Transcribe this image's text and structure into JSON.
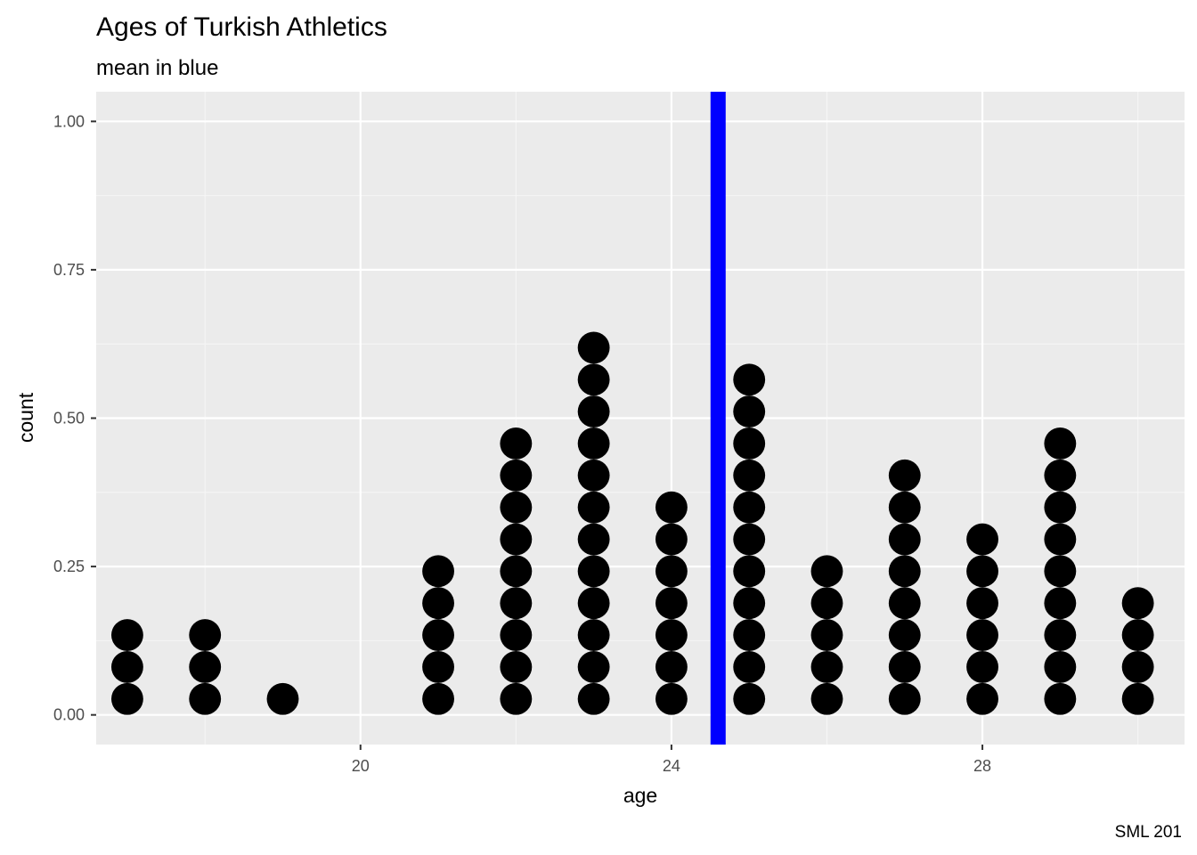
{
  "chart_data": {
    "type": "dotplot",
    "title": "Ages of Turkish Athletics",
    "subtitle": "mean in blue",
    "xlabel": "age",
    "ylabel": "count",
    "caption": "SML 201",
    "xlim": [
      16.6,
      30.6
    ],
    "ylim": [
      -0.05,
      1.05
    ],
    "x_ticks": [
      20,
      24,
      28
    ],
    "x_tick_labels": [
      "20",
      "24",
      "28"
    ],
    "y_ticks": [
      0,
      0.25,
      0.5,
      0.75,
      1
    ],
    "y_tick_labels": [
      "0.00",
      "0.25",
      "0.50",
      "0.75",
      "1.00"
    ],
    "x_minor_ticks": [
      18,
      22,
      26,
      30
    ],
    "y_minor_ticks": [
      0.125,
      0.375,
      0.625,
      0.875
    ],
    "grid": true,
    "dot_diameter_y": 0.0538,
    "points": [
      {
        "age": 17,
        "count": 3
      },
      {
        "age": 18,
        "count": 3
      },
      {
        "age": 19,
        "count": 1
      },
      {
        "age": 21,
        "count": 5
      },
      {
        "age": 22,
        "count": 9
      },
      {
        "age": 23,
        "count": 12
      },
      {
        "age": 24,
        "count": 7
      },
      {
        "age": 25,
        "count": 11
      },
      {
        "age": 26,
        "count": 5
      },
      {
        "age": 27,
        "count": 8
      },
      {
        "age": 28,
        "count": 6
      },
      {
        "age": 29,
        "count": 9
      },
      {
        "age": 30,
        "count": 4
      }
    ],
    "mean": 24.6,
    "colors": {
      "panel_background": "#ebebeb",
      "grid_major": "#ffffff",
      "dots": "#000000",
      "mean_line": "#0000ff",
      "tick_label": "#4d4d4d"
    }
  }
}
